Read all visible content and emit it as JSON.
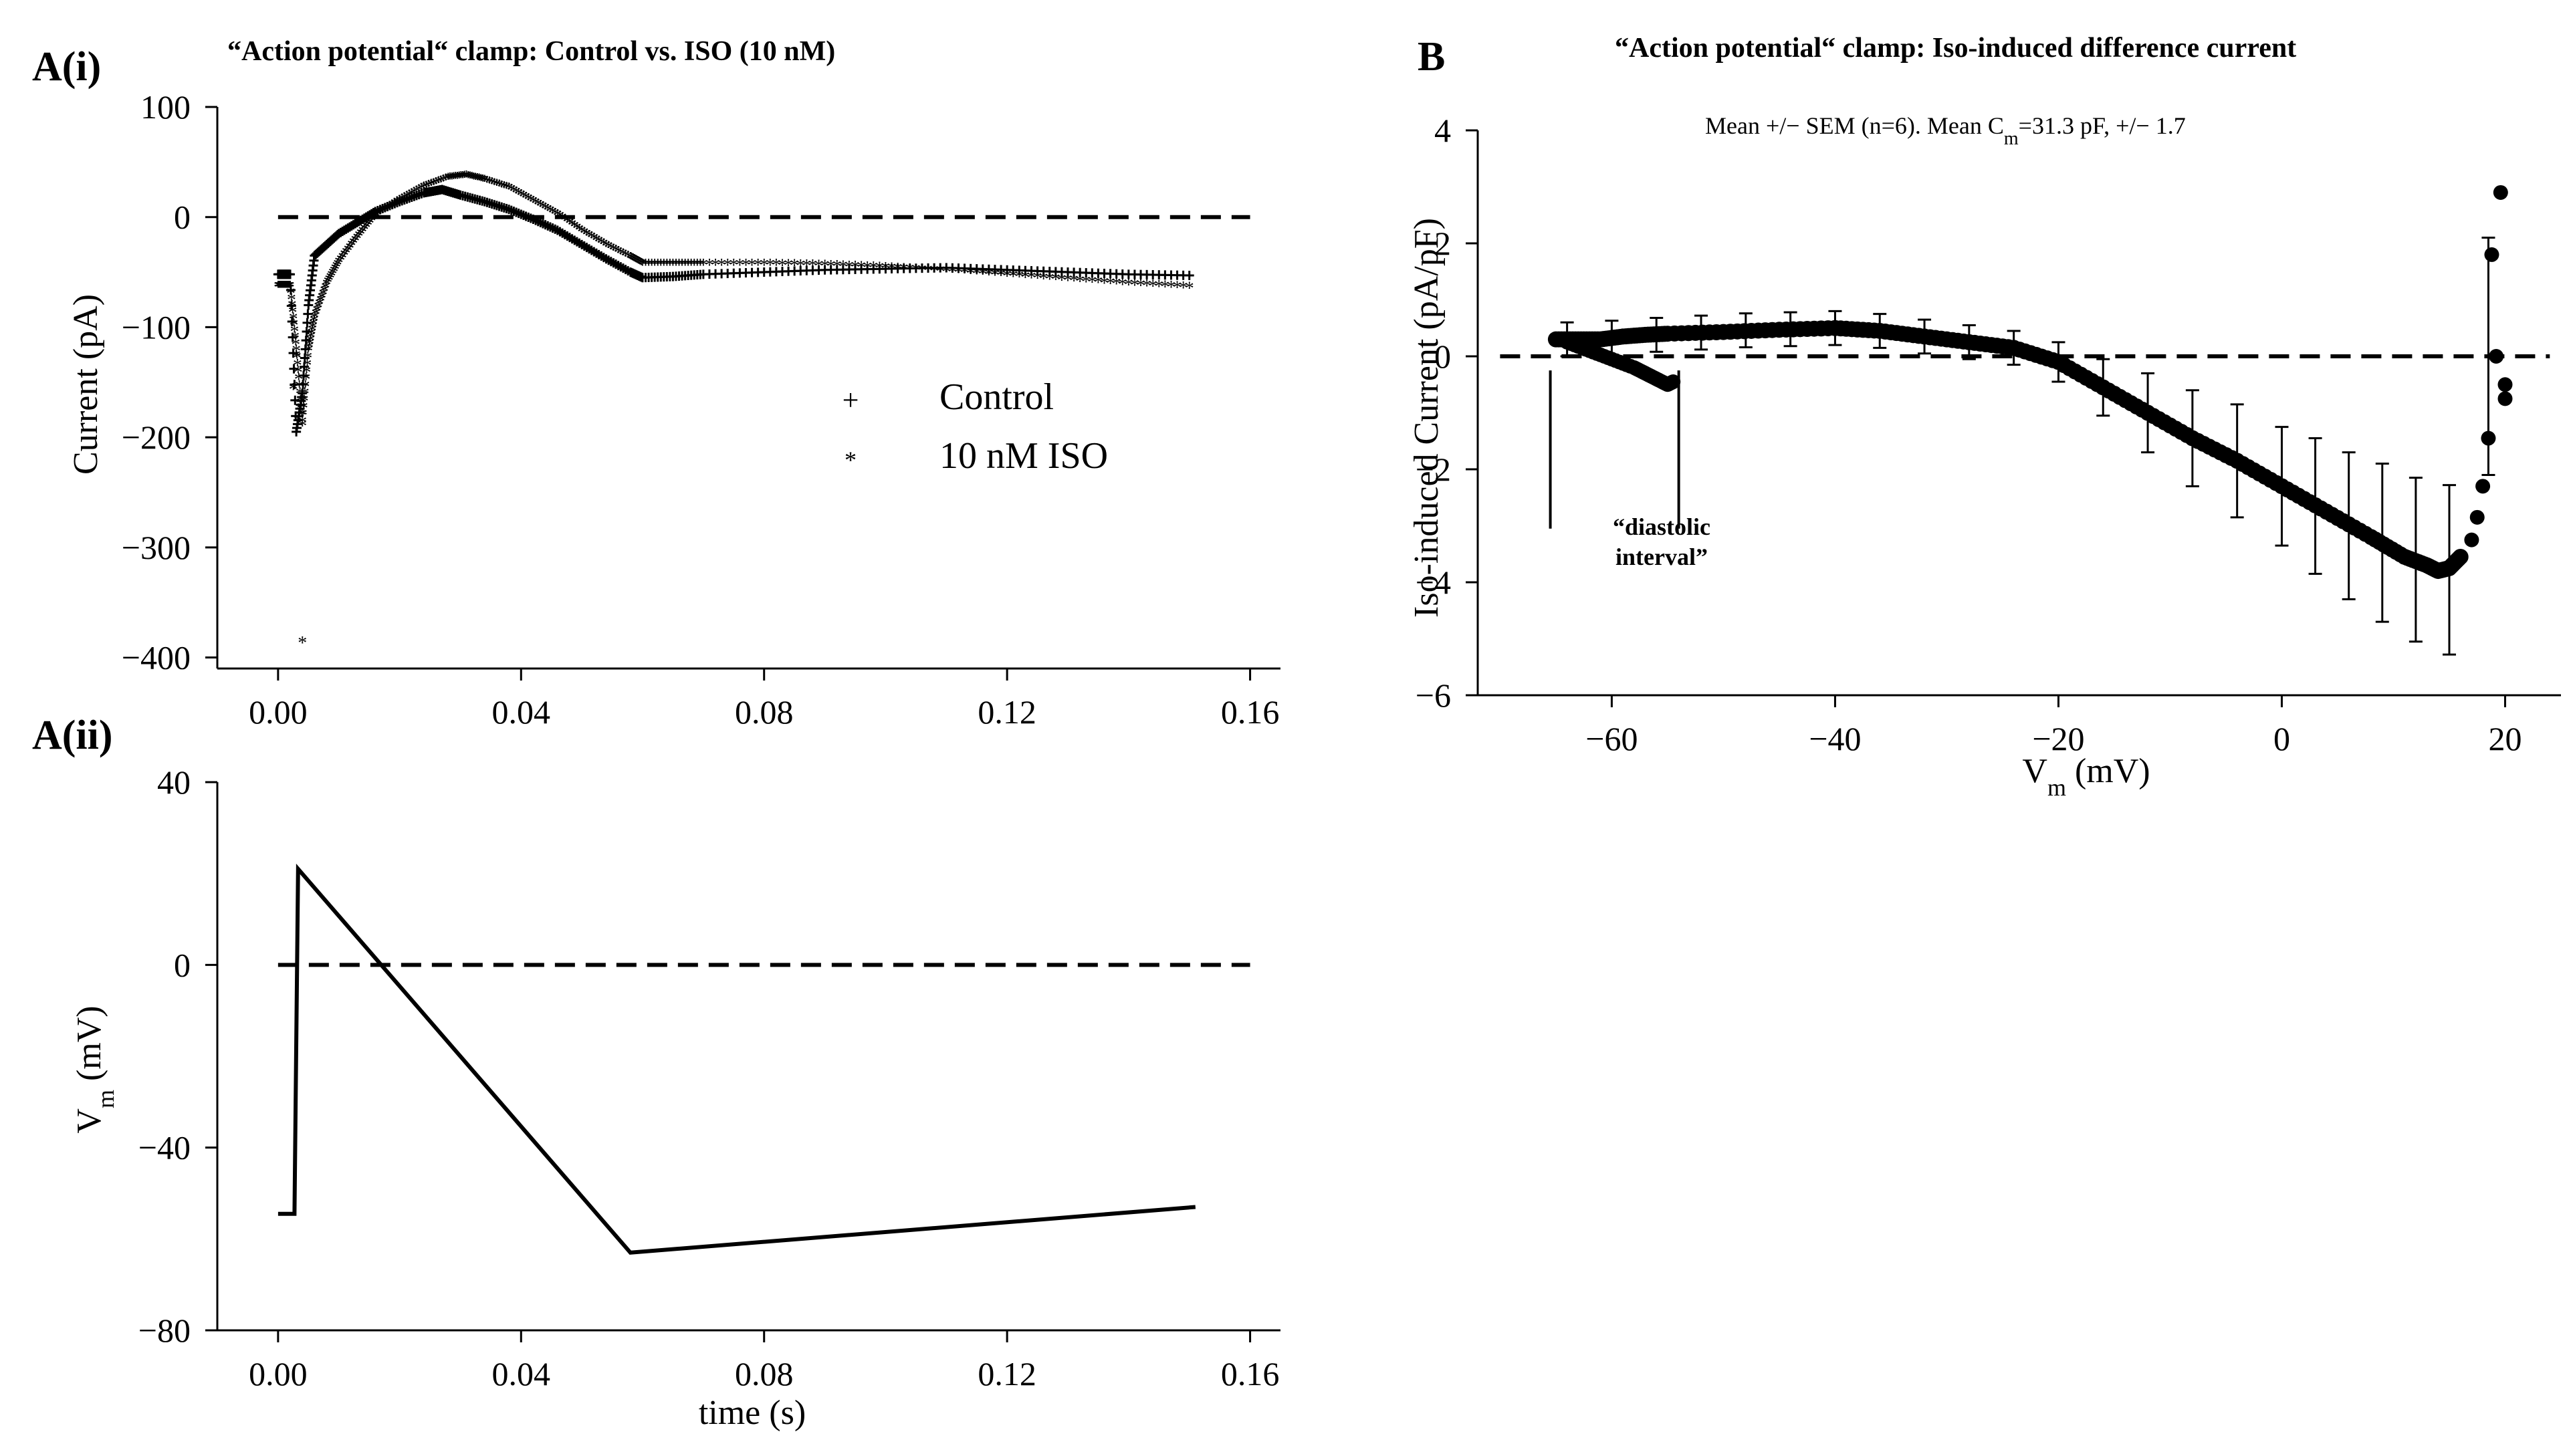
{
  "figure": {
    "panels": [
      {
        "id": "Ai",
        "label": "A(i)"
      },
      {
        "id": "Aii",
        "label": "A(ii)"
      },
      {
        "id": "B",
        "label": "B"
      }
    ]
  },
  "colors": {
    "control": "#000000",
    "iso": "#e8191b",
    "zero_line": "#000000"
  },
  "chart_data": [
    {
      "id": "Ai",
      "type": "scatter",
      "title": "“Action potential“ clamp: Control vs. ISO (10 nM)",
      "xlabel": "",
      "ylabel": "Current (pA)",
      "xlim": [
        -0.01,
        0.165
      ],
      "ylim": [
        -410,
        100
      ],
      "xticks": [
        0.0,
        0.04,
        0.08,
        0.12,
        0.16
      ],
      "xticklabels": [
        "0.00",
        "0.04",
        "0.08",
        "0.12",
        "0.16"
      ],
      "yticks": [
        100,
        0,
        -100,
        -200,
        -300,
        -400
      ],
      "yticklabels": [
        "100",
        "0",
        "−100",
        "−200",
        "−300",
        "−400"
      ],
      "zero_line": {
        "y": 0,
        "style": "dashed",
        "x": [
          0,
          0.16
        ]
      },
      "legend": {
        "position": "center-right",
        "entries": [
          "Control",
          "10 nM ISO"
        ]
      },
      "series": [
        {
          "name": "Control",
          "marker": "plus",
          "x": [
            0,
            0.001,
            0.002,
            0.003,
            0.004,
            0.005,
            0.006,
            0.008,
            0.01,
            0.013,
            0.016,
            0.02,
            0.024,
            0.027,
            0.03,
            0.034,
            0.038,
            0.042,
            0.046,
            0.05,
            0.054,
            0.058,
            0.06,
            0.065,
            0.07,
            0.08,
            0.09,
            0.1,
            0.11,
            0.12,
            0.13,
            0.14,
            0.15
          ],
          "y": [
            -52,
            -52,
            -52,
            -195,
            -160,
            -80,
            -35,
            -25,
            -15,
            -5,
            5,
            14,
            22,
            25,
            20,
            14,
            7,
            -2,
            -12,
            -25,
            -38,
            -50,
            -55,
            -54,
            -52,
            -50,
            -48,
            -47,
            -46,
            -48,
            -50,
            -52,
            -53
          ]
        },
        {
          "name": "10 nM ISO",
          "marker": "star",
          "x": [
            0,
            0.001,
            0.002,
            0.003,
            0.004,
            0.005,
            0.006,
            0.008,
            0.01,
            0.013,
            0.016,
            0.02,
            0.024,
            0.028,
            0.031,
            0.034,
            0.038,
            0.042,
            0.046,
            0.05,
            0.054,
            0.058,
            0.06,
            0.065,
            0.07,
            0.08,
            0.09,
            0.1,
            0.11,
            0.12,
            0.13,
            0.14,
            0.15
          ],
          "y": [
            -62,
            -62,
            -62,
            -120,
            -185,
            -120,
            -90,
            -60,
            -40,
            -18,
            2,
            16,
            28,
            36,
            38,
            34,
            27,
            15,
            3,
            -12,
            -25,
            -36,
            -42,
            -42,
            -42,
            -42,
            -43,
            -45,
            -48,
            -52,
            -56,
            -60,
            -63
          ]
        },
        {
          "name": "",
          "marker": "star",
          "x": [
            0.0025,
            0.003,
            0.004,
            0.004
          ],
          "y": [
            -155,
            -125,
            -188,
            -385
          ]
        }
      ]
    },
    {
      "id": "Aii",
      "type": "line",
      "title": "",
      "xlabel": "time (s)",
      "ylabel": "V",
      "ylabel_sub": "m",
      "ylabel_unit": " (mV)",
      "xlim": [
        -0.01,
        0.165
      ],
      "ylim": [
        -80,
        40
      ],
      "xticks": [
        0.0,
        0.04,
        0.08,
        0.12,
        0.16
      ],
      "xticklabels": [
        "0.00",
        "0.04",
        "0.08",
        "0.12",
        "0.16"
      ],
      "yticks": [
        40,
        0,
        -40,
        -80
      ],
      "yticklabels": [
        "40",
        "0",
        "−40",
        "−80"
      ],
      "zero_line": {
        "y": 0,
        "style": "dashed",
        "x": [
          0,
          0.16
        ]
      },
      "series": [
        {
          "name": "",
          "x": [
            0,
            0.0027,
            0.0033,
            0.058,
            0.0,
            0.151
          ],
          "y": [
            -54.5,
            -54.5,
            21,
            -63,
            0,
            -53
          ]
        }
      ]
    },
    {
      "id": "B",
      "type": "scatter",
      "title": "“Action potential“ clamp: Iso-induced difference current",
      "annotation_pre": "Mean +/− SEM (n=6).  Mean C",
      "annotation_sub": "m",
      "annotation_post": "=31.3 pF, +/− 1.7",
      "xlabel": "V",
      "xlabel_sub": "m",
      "xlabel_unit": " (mV)",
      "ylabel": "Iso-induced Current (pA/pF)",
      "xlim": [
        -72,
        25
      ],
      "ylim": [
        -6,
        4
      ],
      "xticks": [
        -60,
        -40,
        -20,
        0,
        20
      ],
      "xticklabels": [
        "−60",
        "−40",
        "−20",
        "0",
        "20"
      ],
      "yticks": [
        4,
        2,
        0,
        -2,
        -4,
        -6
      ],
      "yticklabels": [
        "4",
        "2",
        "0",
        "−2",
        "−4",
        "−6"
      ],
      "zero_line": {
        "y": 0,
        "style": "dashed",
        "x": [
          -70,
          24
        ]
      },
      "bracket_label_line1": "“diastolic",
      "bracket_label_line2": "interval”",
      "bracket": {
        "x": [
          -65.5,
          -54
        ],
        "y_top": -1.0,
        "y_bottom": -3.0
      },
      "series": [
        {
          "name": "",
          "marker": "circle",
          "x": [
            -65,
            -63,
            -61,
            -59,
            -57,
            -55,
            -50,
            -45,
            -40,
            -36,
            -32,
            -28,
            -24,
            -20,
            -16,
            -12,
            -8,
            -4,
            0,
            4,
            8,
            11,
            13,
            14,
            15,
            16,
            17,
            17.5,
            18,
            18.5,
            18.8,
            19.2,
            19.6,
            20,
            20
          ],
          "y": [
            0.3,
            0.3,
            0.3,
            0.35,
            0.38,
            0.4,
            0.43,
            0.47,
            0.5,
            0.45,
            0.35,
            0.25,
            0.15,
            -0.1,
            -0.55,
            -1.0,
            -1.45,
            -1.85,
            -2.3,
            -2.75,
            -3.2,
            -3.55,
            -3.7,
            -3.8,
            -3.75,
            -3.55,
            -3.25,
            -2.85,
            -2.3,
            -1.45,
            1.8,
            0.0,
            2.9,
            -0.5,
            -0.75
          ]
        },
        {
          "name": "",
          "marker": "circle",
          "x": [
            -64,
            -62,
            -60,
            -58,
            -57,
            -56,
            -55,
            -54.5
          ],
          "y": [
            0.25,
            0.1,
            -0.05,
            -0.2,
            -0.3,
            -0.4,
            -0.5,
            -0.45
          ]
        }
      ],
      "errorbars": {
        "x": [
          -64,
          -60,
          -56,
          -52,
          -48,
          -44,
          -40,
          -36,
          -32,
          -28,
          -24,
          -20,
          -16,
          -12,
          -8,
          -4,
          0,
          3,
          6,
          9,
          12,
          15,
          18.5
        ],
        "y": [
          0.3,
          0.33,
          0.38,
          0.42,
          0.46,
          0.48,
          0.5,
          0.45,
          0.35,
          0.25,
          0.15,
          -0.1,
          -0.55,
          -1.0,
          -1.45,
          -1.85,
          -2.3,
          -2.65,
          -3.0,
          -3.3,
          -3.6,
          -3.78,
          0.0
        ],
        "err": [
          0.3,
          0.3,
          0.3,
          0.3,
          0.3,
          0.3,
          0.3,
          0.3,
          0.3,
          0.3,
          0.3,
          0.35,
          0.5,
          0.7,
          0.85,
          1.0,
          1.05,
          1.2,
          1.3,
          1.4,
          1.45,
          1.5,
          2.1
        ]
      }
    }
  ]
}
